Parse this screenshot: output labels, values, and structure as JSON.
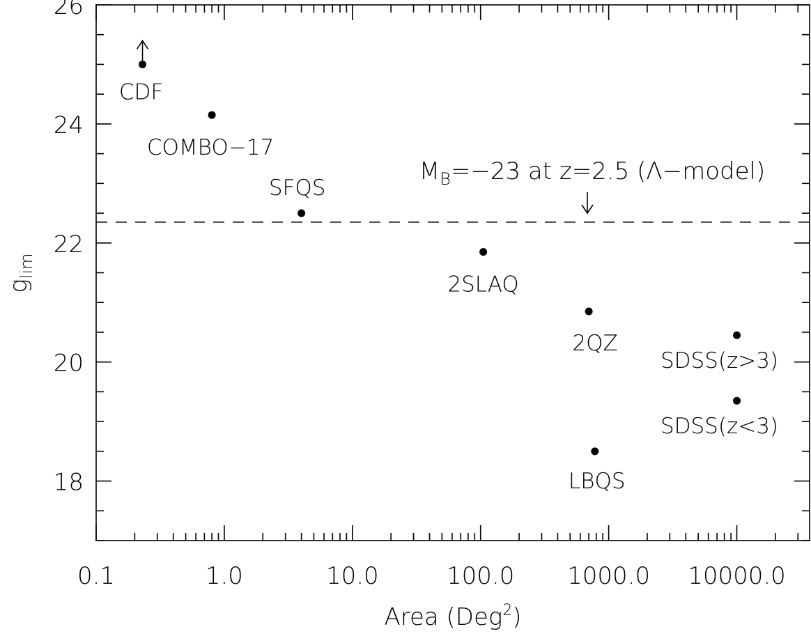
{
  "chart_data": {
    "type": "scatter",
    "x_label": {
      "text": "Area (Deg",
      "sup": "2",
      "rest": ")"
    },
    "y_label": {
      "text": "g",
      "sub": "lim"
    },
    "annotation": {
      "text": "M",
      "sub": "B",
      "rest": "=−23 at z=2.5 (Λ−model)"
    },
    "log_x": true,
    "xlim": [
      0.1,
      37000
    ],
    "xticks": [
      0.1,
      {
        "value": 1,
        "label": "1.0"
      },
      {
        "value": 10,
        "label": "10.0"
      },
      {
        "value": 100,
        "label": "100.0"
      },
      {
        "value": 1000,
        "label": "1000.0"
      },
      {
        "value": 10000,
        "label": "10000.0"
      }
    ],
    "ylim": [
      17,
      26
    ],
    "yticks": [
      18,
      20,
      22,
      24,
      26
    ],
    "yminor_step": 0.5,
    "hline": 22.35,
    "color": "#000000",
    "labels": [
      "CDF",
      "COMBO−17",
      "SFQS",
      "2SLAQ",
      "2QZ",
      "LBQS",
      "SDSS(z>3)",
      "SDSS(z<3)"
    ],
    "x": [
      0.23,
      0.8,
      4,
      105,
      700,
      780,
      10000,
      10000
    ],
    "values": [
      25.0,
      24.15,
      22.5,
      21.85,
      20.85,
      18.5,
      20.45,
      19.35
    ],
    "lower_limits": [
      true,
      false,
      false,
      false,
      false,
      false,
      false,
      false
    ]
  }
}
